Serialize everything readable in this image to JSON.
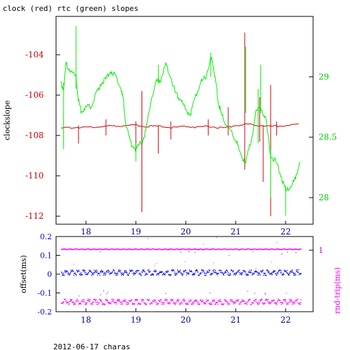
{
  "title": "clock (red) rtc (green) slopes",
  "footer": "2012-06-17 charas",
  "colors": {
    "clock": "#cc0000",
    "rtc": "#00ee00",
    "offset": "#0000ff",
    "roundtrip": "#ff00ff",
    "axis_left_top": "#cc0000",
    "axis_right_top": "#00cc00",
    "axis_bottom_x": "#00008b",
    "axis_left_bottom": "#0000cc",
    "axis_right_bottom": "#cc00cc"
  },
  "chart_data": [
    {
      "type": "line",
      "title": "clock (red) rtc (green) slopes",
      "ylabel": "clockslope",
      "xlim": [
        17.4,
        22.55
      ],
      "x_ticks": [
        "18",
        "19",
        "20",
        "21",
        "22"
      ],
      "ylim": [
        -112.4,
        -102.1
      ],
      "y_ticks": [
        "-104",
        "-106",
        "-108",
        "-110",
        "-112"
      ],
      "y2lim": [
        27.78,
        29.5
      ],
      "y2_ticks": [
        "29",
        "28.5",
        "28"
      ],
      "series": [
        {
          "axis": "left",
          "color": "#cc0000",
          "x": [
            17.5,
            17.75,
            18.0,
            18.25,
            18.5,
            18.75,
            19.0,
            19.25,
            19.5,
            19.75,
            20.0,
            20.25,
            20.5,
            20.75,
            21.0,
            21.25,
            21.5,
            21.75,
            22.0,
            22.3
          ],
          "values": [
            -107.65,
            -107.6,
            -107.6,
            -107.55,
            -107.55,
            -107.5,
            -107.5,
            -107.55,
            -107.55,
            -107.6,
            -107.55,
            -107.6,
            -107.55,
            -107.65,
            -107.5,
            -107.45,
            -107.5,
            -107.55,
            -107.5,
            -107.45
          ],
          "spikes": [
            {
              "x": 17.55,
              "lo": -108.5,
              "hi": -106.9
            },
            {
              "x": 17.85,
              "lo": -108.4,
              "hi": -107.5
            },
            {
              "x": 18.4,
              "lo": -108.0,
              "hi": -107.2
            },
            {
              "x": 19.0,
              "lo": -108.8,
              "hi": -107.3
            },
            {
              "x": 19.12,
              "lo": -111.8,
              "hi": -105.8
            },
            {
              "x": 19.45,
              "lo": -108.9,
              "hi": -107.5
            },
            {
              "x": 19.7,
              "lo": -108.2,
              "hi": -107.3
            },
            {
              "x": 20.45,
              "lo": -108.0,
              "hi": -107.2
            },
            {
              "x": 20.85,
              "lo": -108.0,
              "hi": -106.6
            },
            {
              "x": 21.18,
              "lo": -109.7,
              "hi": -102.9
            },
            {
              "x": 21.48,
              "lo": -108.3,
              "hi": -106.1
            },
            {
              "x": 21.55,
              "lo": -110.3,
              "hi": -107.5
            },
            {
              "x": 21.7,
              "lo": -112.0,
              "hi": -105.5
            },
            {
              "x": 21.82,
              "lo": -108.0,
              "hi": -107.3
            }
          ]
        },
        {
          "axis": "right",
          "color": "#00ee00",
          "x": [
            17.5,
            17.55,
            17.6,
            17.7,
            17.8,
            17.85,
            17.9,
            18.0,
            18.1,
            18.2,
            18.3,
            18.4,
            18.5,
            18.6,
            18.7,
            18.75,
            18.8,
            18.9,
            19.0,
            19.1,
            19.2,
            19.3,
            19.4,
            19.5,
            19.6,
            19.7,
            19.8,
            19.9,
            20.0,
            20.1,
            20.2,
            20.3,
            20.4,
            20.5,
            20.55,
            20.6,
            20.65,
            20.7,
            20.8,
            20.9,
            21.0,
            21.1,
            21.2,
            21.3,
            21.4,
            21.5,
            21.6,
            21.7,
            21.8,
            21.9,
            22.0,
            22.1,
            22.2,
            22.3
          ],
          "values": [
            28.95,
            28.9,
            29.1,
            29.05,
            29.0,
            28.8,
            28.72,
            28.75,
            28.75,
            28.85,
            28.95,
            28.98,
            29.05,
            29.0,
            28.9,
            28.8,
            28.6,
            28.45,
            28.4,
            28.45,
            28.55,
            28.8,
            28.95,
            28.98,
            29.1,
            29.0,
            28.85,
            28.82,
            28.72,
            28.7,
            28.85,
            28.95,
            29.0,
            29.15,
            29.1,
            28.95,
            28.8,
            28.7,
            28.62,
            28.55,
            28.48,
            28.35,
            28.3,
            28.45,
            28.7,
            28.75,
            28.65,
            28.35,
            28.3,
            28.2,
            28.05,
            28.1,
            28.15,
            28.33
          ],
          "spikes": [
            {
              "x": 17.55,
              "lo": 28.4,
              "hi": 28.95
            },
            {
              "x": 17.8,
              "lo": 28.9,
              "hi": 29.42
            },
            {
              "x": 19.0,
              "lo": 28.3,
              "hi": 28.45
            },
            {
              "x": 19.45,
              "lo": 28.95,
              "hi": 29.1
            },
            {
              "x": 20.5,
              "lo": 29.0,
              "hi": 29.2
            },
            {
              "x": 21.2,
              "lo": 28.7,
              "hi": 29.25
            },
            {
              "x": 21.45,
              "lo": 28.45,
              "hi": 28.9
            },
            {
              "x": 21.5,
              "lo": 28.7,
              "hi": 29.1
            },
            {
              "x": 21.7,
              "lo": 28.0,
              "hi": 28.4
            },
            {
              "x": 22.0,
              "lo": 27.85,
              "hi": 28.1
            }
          ]
        }
      ]
    },
    {
      "type": "scatter",
      "ylabel": "offset(ms)",
      "y2label": "rnd-trip(ms)",
      "xlim": [
        17.4,
        22.55
      ],
      "x_ticks": [
        "18",
        "19",
        "20",
        "21",
        "22"
      ],
      "ylim": [
        -0.2,
        0.2
      ],
      "y_ticks": [
        "0.2",
        "0.1",
        "0",
        "-0.1",
        "-0.2"
      ],
      "y2lim": [
        0.55,
        1.1
      ],
      "y2_ticks": [
        "1"
      ],
      "x_range": [
        17.5,
        22.3
      ],
      "series": [
        {
          "axis": "left",
          "color": "#0000ff",
          "center": 0.01,
          "spread": 0.015,
          "outliers": [
            -0.1,
            0.12
          ]
        },
        {
          "axis": "right",
          "color": "#ff00ff",
          "center": 0.625,
          "spread": 0.02,
          "outliers": [
            1.0
          ]
        },
        {
          "axis": "right",
          "color": "#ff00ff",
          "center": 1.01,
          "spread": 0.003,
          "outliers": []
        }
      ]
    }
  ]
}
